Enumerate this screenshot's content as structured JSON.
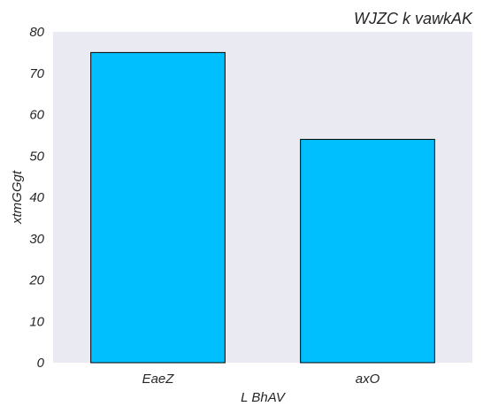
{
  "chart_data": {
    "type": "bar",
    "title": "WJZC k vawkAK",
    "xlabel": "L BhAV",
    "ylabel": "xtmGGgt",
    "categories": [
      "EaeZ",
      "axO"
    ],
    "values": [
      75,
      54
    ],
    "ylim": [
      0,
      80
    ],
    "yticks": [
      0,
      10,
      20,
      30,
      40,
      50,
      60,
      70,
      80
    ],
    "grid": false,
    "bar_color": "#00bfff",
    "bar_edge_color": "#000000",
    "plot_background": "#eaeaf2"
  }
}
